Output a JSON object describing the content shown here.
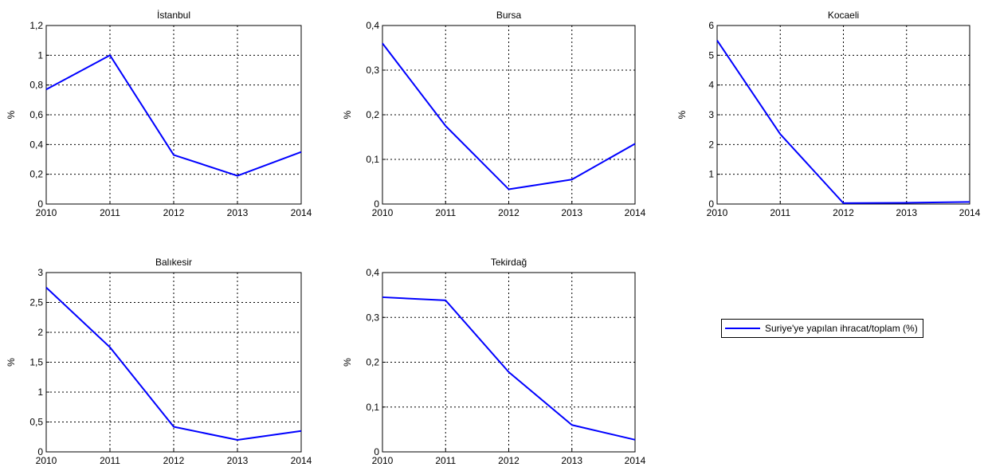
{
  "colors": {
    "line": "#0000ff",
    "grid": "#000000",
    "axis": "#000000"
  },
  "legend": {
    "label": "Suriye'ye yapılan ihracat/toplam (%)"
  },
  "chart_data": [
    {
      "type": "line",
      "title": "İstanbul",
      "ylabel": "%",
      "x": [
        "2010",
        "2011",
        "2012",
        "2013",
        "2014"
      ],
      "values": [
        0.77,
        1.0,
        0.33,
        0.19,
        0.35
      ],
      "ylim": [
        0,
        1.2
      ],
      "yticks": [
        "0",
        "0,2",
        "0,4",
        "0,6",
        "0,8",
        "1",
        "1,2"
      ],
      "grid": true
    },
    {
      "type": "line",
      "title": "Bursa",
      "ylabel": "%",
      "x": [
        "2010",
        "2011",
        "2012",
        "2013",
        "2014"
      ],
      "values": [
        0.36,
        0.175,
        0.033,
        0.055,
        0.135
      ],
      "ylim": [
        0,
        0.4
      ],
      "yticks": [
        "0",
        "0,1",
        "0,2",
        "0,3",
        "0,4"
      ],
      "grid": true
    },
    {
      "type": "line",
      "title": "Kocaeli",
      "ylabel": "%",
      "x": [
        "2010",
        "2011",
        "2012",
        "2013",
        "2014"
      ],
      "values": [
        5.5,
        2.35,
        0.03,
        0.04,
        0.07
      ],
      "ylim": [
        0,
        6
      ],
      "yticks": [
        "0",
        "1",
        "2",
        "3",
        "4",
        "5",
        "6"
      ],
      "grid": true
    },
    {
      "type": "line",
      "title": "Balıkesir",
      "ylabel": "%",
      "x": [
        "2010",
        "2011",
        "2012",
        "2013",
        "2014"
      ],
      "values": [
        2.75,
        1.75,
        0.42,
        0.2,
        0.35
      ],
      "ylim": [
        0,
        3
      ],
      "yticks": [
        "0",
        "0,5",
        "1",
        "1,5",
        "2",
        "2,5",
        "3"
      ],
      "grid": true
    },
    {
      "type": "line",
      "title": "Tekirdağ",
      "ylabel": "%",
      "x": [
        "2010",
        "2011",
        "2012",
        "2013",
        "2014"
      ],
      "values": [
        0.345,
        0.338,
        0.178,
        0.06,
        0.027
      ],
      "ylim": [
        0,
        0.4
      ],
      "yticks": [
        "0",
        "0,1",
        "0,2",
        "0,3",
        "0,4"
      ],
      "grid": true
    }
  ]
}
